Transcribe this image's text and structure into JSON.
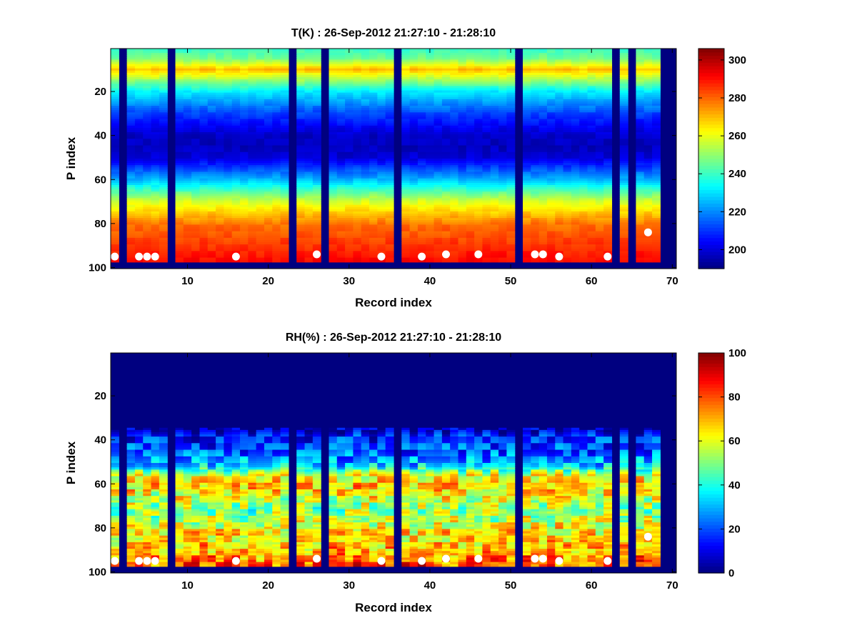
{
  "chart_data": [
    {
      "type": "heatmap",
      "title": "T(K) : 26-Sep-2012 21:27:10 - 21:28:10",
      "xlabel": "Record index",
      "ylabel": "P index",
      "xlim": [
        0.5,
        70.5
      ],
      "ylim": [
        100.5,
        0.5
      ],
      "x_ticks": [
        10,
        20,
        30,
        40,
        50,
        60,
        70
      ],
      "y_ticks": [
        20,
        40,
        60,
        80,
        100
      ],
      "colormap": "jet",
      "colorbar": {
        "range": [
          190,
          306
        ],
        "ticks": [
          200,
          220,
          240,
          260,
          280,
          300
        ]
      },
      "missing_records": [
        2,
        8,
        23,
        27,
        36,
        51,
        63,
        65,
        69,
        70
      ],
      "last_valid_level": 97,
      "profile_levels": [
        1,
        5,
        10,
        20,
        30,
        40,
        45,
        50,
        60,
        70,
        80,
        90,
        97
      ],
      "profile_values": [
        240,
        247,
        270,
        232,
        212,
        198,
        197,
        200,
        225,
        258,
        278,
        286,
        291
      ],
      "markers": [
        {
          "x": 1,
          "y": 95
        },
        {
          "x": 4,
          "y": 95
        },
        {
          "x": 5,
          "y": 95
        },
        {
          "x": 6,
          "y": 95
        },
        {
          "x": 16,
          "y": 95
        },
        {
          "x": 26,
          "y": 94
        },
        {
          "x": 34,
          "y": 95
        },
        {
          "x": 39,
          "y": 95
        },
        {
          "x": 42,
          "y": 94
        },
        {
          "x": 46,
          "y": 94
        },
        {
          "x": 53,
          "y": 94
        },
        {
          "x": 54,
          "y": 94
        },
        {
          "x": 56,
          "y": 95
        },
        {
          "x": 62,
          "y": 95
        },
        {
          "x": 67,
          "y": 84
        }
      ],
      "marker_color": "#ffffff"
    },
    {
      "type": "heatmap",
      "title": "RH(%) : 26-Sep-2012 21:27:10 - 21:28:10",
      "xlabel": "Record index",
      "ylabel": "P index",
      "xlim": [
        0.5,
        70.5
      ],
      "ylim": [
        100.5,
        0.5
      ],
      "x_ticks": [
        10,
        20,
        30,
        40,
        50,
        60,
        70
      ],
      "y_ticks": [
        20,
        40,
        60,
        80,
        100
      ],
      "colormap": "jet",
      "colorbar": {
        "range": [
          0,
          100
        ],
        "ticks": [
          0,
          20,
          40,
          60,
          80,
          100
        ]
      },
      "missing_records": [
        2,
        8,
        23,
        27,
        36,
        51,
        63,
        65,
        69,
        70
      ],
      "last_valid_level": 97,
      "profile_levels": [
        1,
        34,
        38,
        45,
        52,
        56,
        60,
        66,
        72,
        80,
        90,
        97
      ],
      "profile_values": [
        0,
        0,
        14,
        20,
        33,
        60,
        68,
        60,
        50,
        62,
        70,
        80
      ],
      "markers": [
        {
          "x": 1,
          "y": 95
        },
        {
          "x": 4,
          "y": 95
        },
        {
          "x": 5,
          "y": 95
        },
        {
          "x": 6,
          "y": 95
        },
        {
          "x": 16,
          "y": 95
        },
        {
          "x": 26,
          "y": 94
        },
        {
          "x": 34,
          "y": 95
        },
        {
          "x": 39,
          "y": 95
        },
        {
          "x": 42,
          "y": 94
        },
        {
          "x": 46,
          "y": 94
        },
        {
          "x": 53,
          "y": 94
        },
        {
          "x": 54,
          "y": 94
        },
        {
          "x": 56,
          "y": 95
        },
        {
          "x": 62,
          "y": 95
        },
        {
          "x": 67,
          "y": 84
        }
      ],
      "marker_color": "#ffffff"
    }
  ]
}
